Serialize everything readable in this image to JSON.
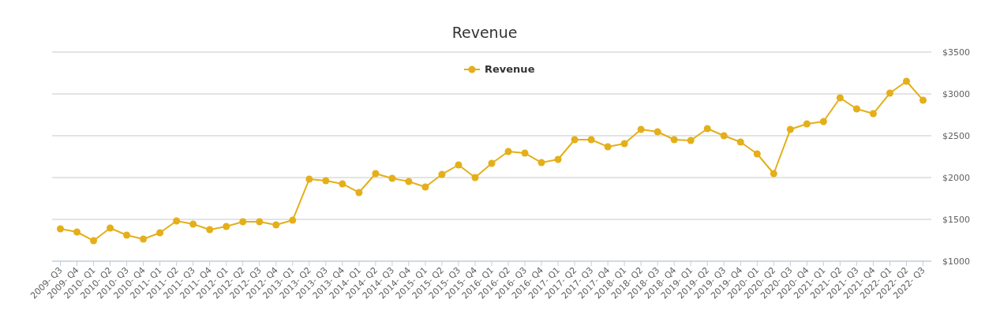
{
  "chart_data": {
    "type": "line",
    "title": "Revenue",
    "categories": [
      "2009- Q3",
      "2009- Q4",
      "2010- Q1",
      "2010- Q2",
      "2010- Q3",
      "2010- Q4",
      "2011- Q1",
      "2011- Q2",
      "2011- Q3",
      "2011- Q4",
      "2012- Q1",
      "2012- Q2",
      "2012- Q3",
      "2012- Q4",
      "2013- Q1",
      "2013- Q2",
      "2013- Q3",
      "2013- Q4",
      "2014- Q1",
      "2014- Q2",
      "2014- Q3",
      "2014- Q4",
      "2015- Q1",
      "2015- Q2",
      "2015- Q3",
      "2015- Q4",
      "2016- Q1",
      "2016- Q2",
      "2016- Q3",
      "2016- Q4",
      "2017- Q1",
      "2017- Q2",
      "2017- Q3",
      "2017- Q4",
      "2018- Q1",
      "2018- Q2",
      "2018- Q3",
      "2018- Q4",
      "2019- Q1",
      "2019- Q2",
      "2019- Q3",
      "2019- Q4",
      "2020- Q1",
      "2020- Q2",
      "2020- Q3",
      "2020- Q4",
      "2021- Q1",
      "2021- Q2",
      "2021- Q3",
      "2021- Q4",
      "2022- Q1",
      "2022- Q2",
      "2022- Q3"
    ],
    "series": [
      {
        "name": "Revenue",
        "color": "#e4af19",
        "values": [
          1387,
          1349,
          1245,
          1396,
          1311,
          1264,
          1340,
          1481,
          1443,
          1377,
          1415,
          1472,
          1472,
          1434,
          1490,
          1981,
          1962,
          1925,
          1821,
          2047,
          1991,
          1953,
          1887,
          2038,
          2151,
          2000,
          2170,
          2311,
          2292,
          2179,
          2217,
          2453,
          2453,
          2368,
          2406,
          2575,
          2547,
          2453,
          2443,
          2585,
          2500,
          2425,
          2283,
          2047,
          2575,
          2642,
          2670,
          2953,
          2821,
          2764,
          3009,
          3151,
          2925
        ]
      }
    ],
    "ylim": [
      1000,
      3500
    ],
    "yticks": [
      {
        "value": 1000,
        "label": "$1000"
      },
      {
        "value": 1500,
        "label": "$1500"
      },
      {
        "value": 2000,
        "label": "$2000"
      },
      {
        "value": 2500,
        "label": "$2500"
      },
      {
        "value": 3000,
        "label": "$3000"
      },
      {
        "value": 3500,
        "label": "$3500"
      }
    ],
    "grid": "y",
    "legend": "top",
    "marker": "circle",
    "line_style": "solid"
  }
}
